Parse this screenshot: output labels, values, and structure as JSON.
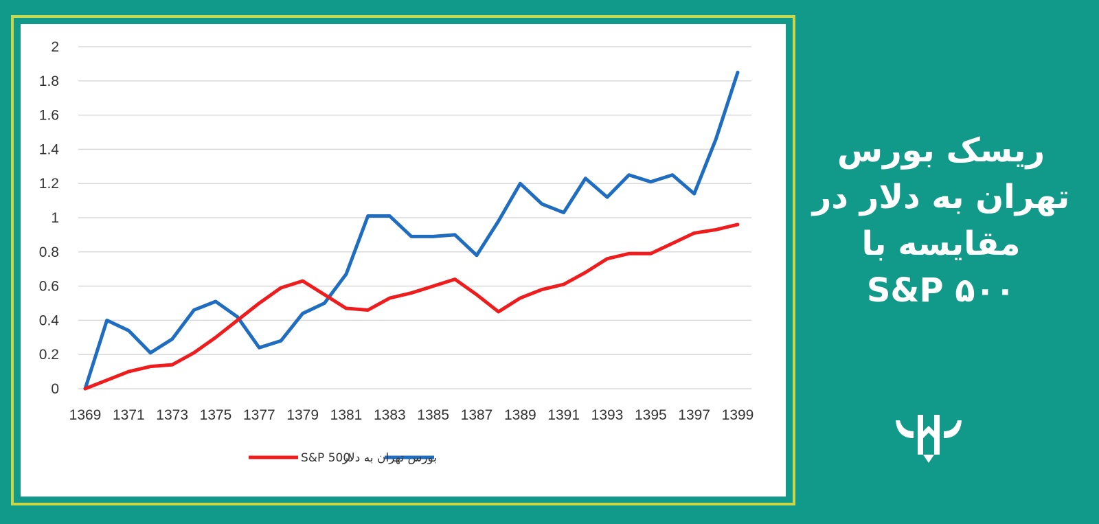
{
  "title": {
    "lines": [
      "ریسک بورس",
      "تهران به دلار در",
      "مقایسه با",
      "S&P ۵۰۰"
    ]
  },
  "colors": {
    "background": "#11998a",
    "frame_border": "#c8d64a",
    "panel": "#ffffff",
    "title_text": "#ffffff"
  },
  "logo": {
    "icon": "bull-horns-logo-icon"
  },
  "chart_data": {
    "type": "line",
    "x": [
      1369,
      1370,
      1371,
      1372,
      1373,
      1374,
      1375,
      1376,
      1377,
      1378,
      1379,
      1380,
      1381,
      1382,
      1383,
      1384,
      1385,
      1386,
      1387,
      1388,
      1389,
      1390,
      1391,
      1392,
      1393,
      1394,
      1395,
      1396,
      1397,
      1398,
      1399
    ],
    "x_tick_labels": [
      "1369",
      "1371",
      "1373",
      "1375",
      "1377",
      "1379",
      "1381",
      "1383",
      "1385",
      "1387",
      "1389",
      "1391",
      "1393",
      "1395",
      "1397",
      "1399"
    ],
    "y_tick_labels": [
      "0",
      "0.2",
      "0.4",
      "0.6",
      "0.8",
      "1",
      "1.2",
      "1.4",
      "1.6",
      "1.8",
      "2"
    ],
    "ylim": [
      0,
      2
    ],
    "grid": true,
    "legend_position": "bottom",
    "series": [
      {
        "name": "S&P 500",
        "color": "#ee1c1c",
        "values": [
          0,
          0.05,
          0.1,
          0.13,
          0.14,
          0.21,
          0.3,
          0.4,
          0.5,
          0.59,
          0.63,
          0.55,
          0.47,
          0.46,
          0.53,
          0.56,
          0.6,
          0.64,
          0.55,
          0.45,
          0.53,
          0.58,
          0.61,
          0.68,
          0.76,
          0.79,
          0.79,
          0.85,
          0.91,
          0.93,
          0.96
        ]
      },
      {
        "name": "بورس تهران به دلار",
        "color": "#1f6dc0",
        "values": [
          0,
          0.4,
          0.34,
          0.21,
          0.29,
          0.46,
          0.51,
          0.42,
          0.24,
          0.28,
          0.44,
          0.5,
          0.67,
          1.01,
          1.01,
          0.89,
          0.89,
          0.9,
          0.78,
          0.98,
          1.2,
          1.08,
          1.03,
          1.23,
          1.12,
          1.25,
          1.21,
          1.25,
          1.14,
          1.46,
          1.85
        ]
      }
    ]
  }
}
